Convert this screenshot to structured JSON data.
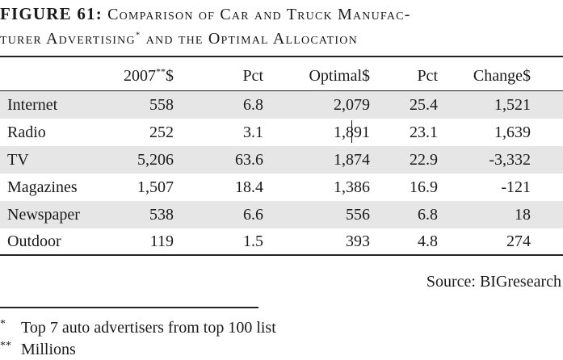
{
  "title": {
    "lead": "FIGURE 61:",
    "line1_rest": "Comparison of Car and Truck Manufac-",
    "line2_a": "turer Advertising",
    "line2_sup": "*",
    "line2_b": "and the Optimal Allocation"
  },
  "table": {
    "headers": {
      "col1_main": "2007",
      "col1_sup": "**",
      "col1_unit": "$",
      "col2": "Pct",
      "col3": "Optimal$",
      "col4": "Pct",
      "col5": "Change$"
    },
    "rows": [
      {
        "media": "Internet",
        "spend_2007": "558",
        "pct_2007": "6.8",
        "optimal": "2,079",
        "pct_optimal": "25.4",
        "change": "1,521"
      },
      {
        "media": "Radio",
        "spend_2007": "252",
        "pct_2007": "3.1",
        "optimal": "1,891",
        "pct_optimal": "23.1",
        "change": "1,639"
      },
      {
        "media": "TV",
        "spend_2007": "5,206",
        "pct_2007": "63.6",
        "optimal": "1,874",
        "pct_optimal": "22.9",
        "change": "-3,332"
      },
      {
        "media": "Magazines",
        "spend_2007": "1,507",
        "pct_2007": "18.4",
        "optimal": "1,386",
        "pct_optimal": "16.9",
        "change": "-121"
      },
      {
        "media": "Newspaper",
        "spend_2007": "538",
        "pct_2007": "6.6",
        "optimal": "556",
        "pct_optimal": "6.8",
        "change": "18"
      },
      {
        "media": "Outdoor",
        "spend_2007": "119",
        "pct_2007": "1.5",
        "optimal": "393",
        "pct_optimal": "4.8",
        "change": "274"
      }
    ]
  },
  "source": "Source: BIGresearch",
  "footnotes": [
    {
      "mark": "*",
      "text": "Top 7 auto advertisers from top 100 list"
    },
    {
      "mark": "**",
      "text": "Millions"
    }
  ]
}
